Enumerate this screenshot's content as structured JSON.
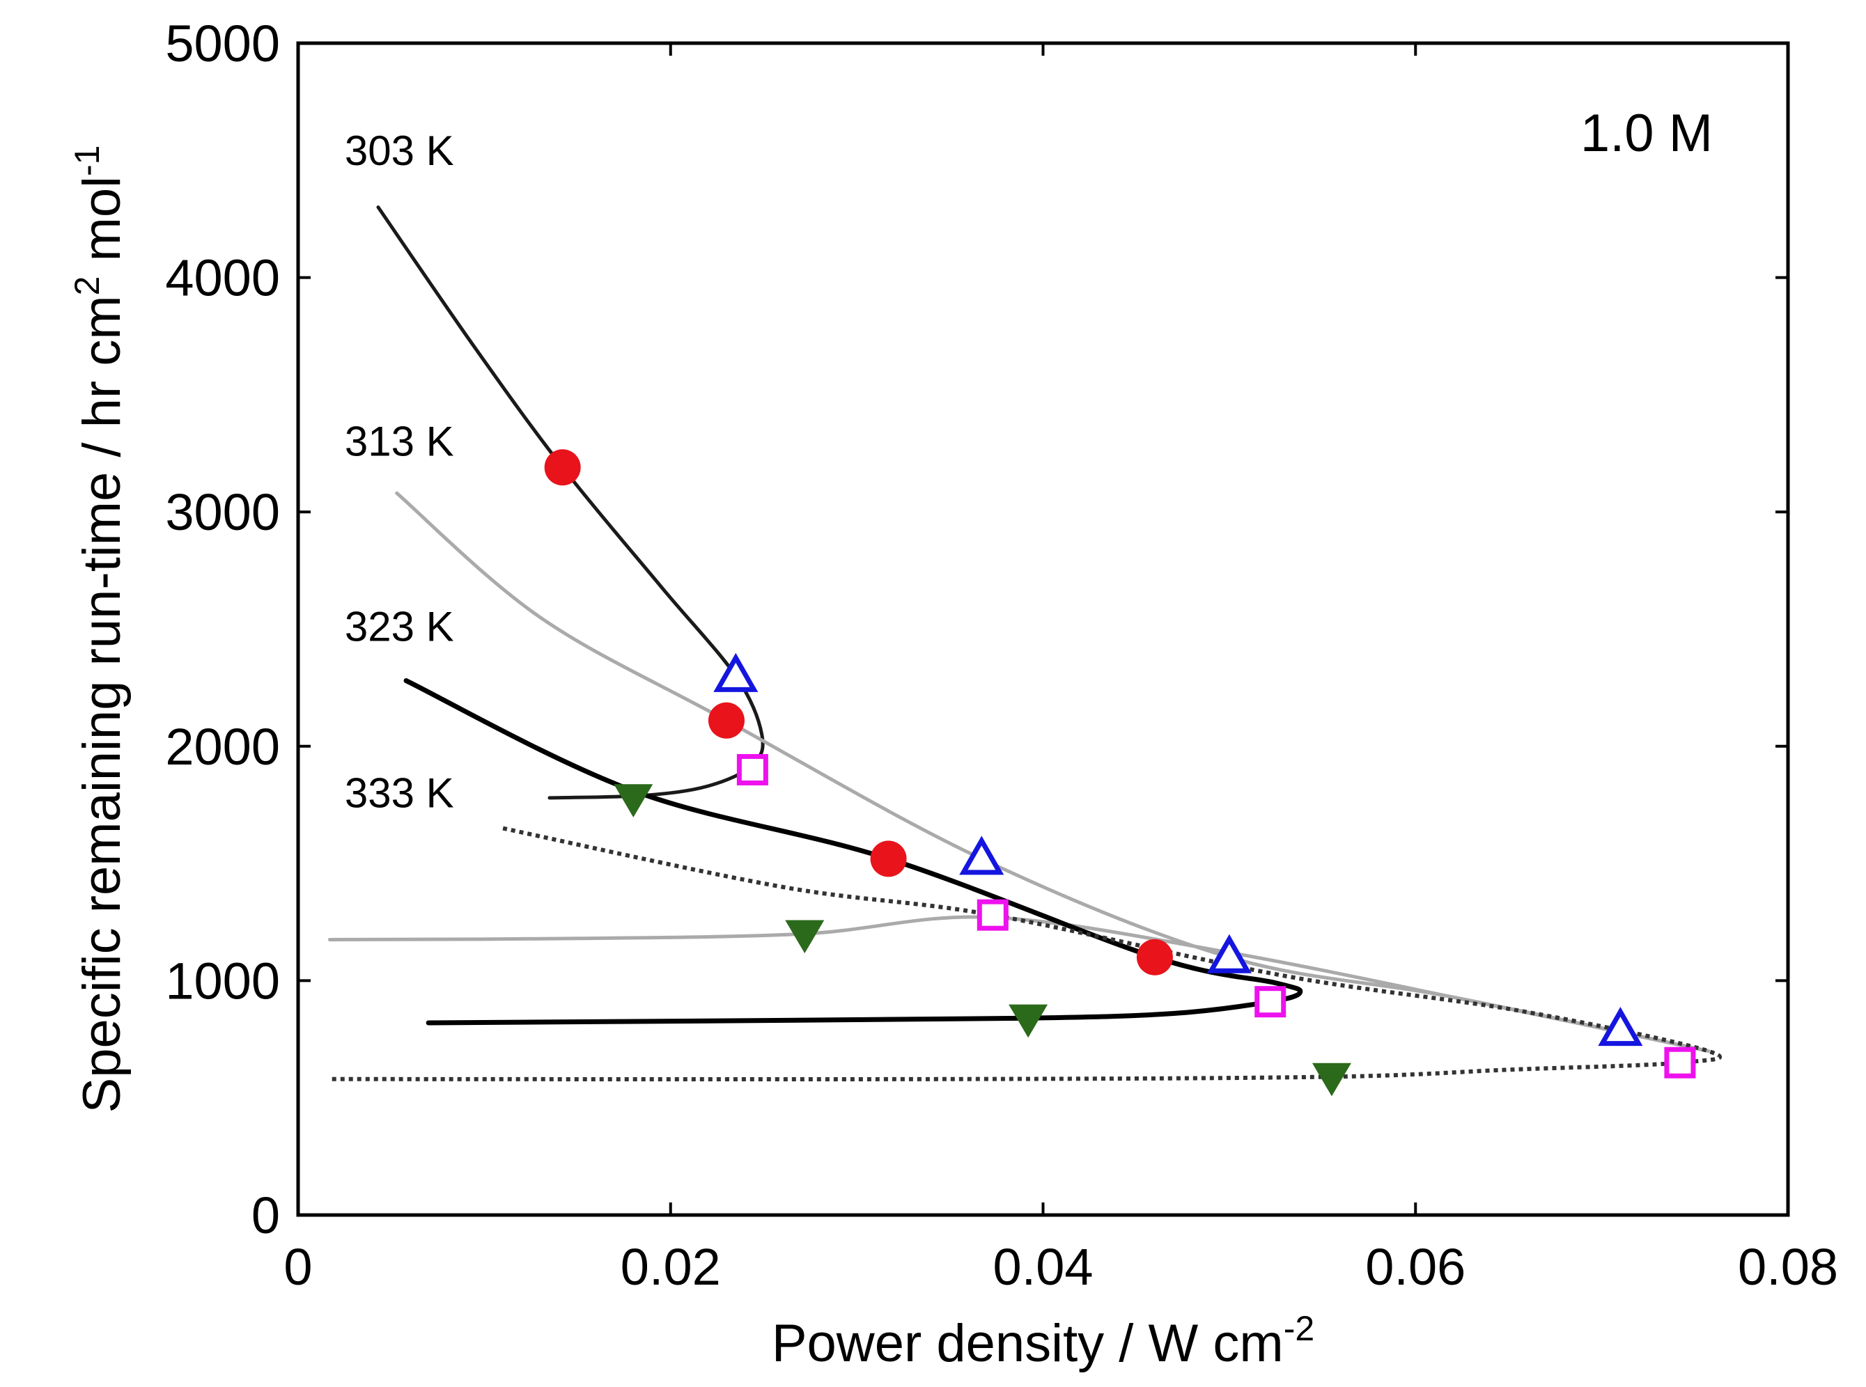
{
  "chart_data": {
    "type": "line",
    "title": "",
    "annotation": "1.0 M",
    "xlabel": {
      "main": "Power density / W cm",
      "sup": "-2"
    },
    "ylabel": {
      "p1": "Specific remaining run-time / hr cm",
      "sup1": "2",
      "p2": " mol",
      "sup2": "-1"
    },
    "xlim": [
      0,
      0.08
    ],
    "ylim": [
      0,
      5000
    ],
    "xticks": [
      0,
      0.02,
      0.04,
      0.06,
      0.08
    ],
    "xtick_labels": [
      "0",
      "0.02",
      "0.04",
      "0.06",
      "0.08"
    ],
    "yticks": [
      0,
      1000,
      2000,
      3000,
      4000,
      5000
    ],
    "ytick_labels": [
      "0",
      "1000",
      "2000",
      "3000",
      "4000",
      "5000"
    ],
    "curve_labels": [
      {
        "text": "303 K",
        "x": 0.0025,
        "y": 4480
      },
      {
        "text": "313 K",
        "x": 0.0025,
        "y": 3240
      },
      {
        "text": "323 K",
        "x": 0.0025,
        "y": 2450
      },
      {
        "text": "333 K",
        "x": 0.0025,
        "y": 1740
      }
    ],
    "series": [
      {
        "name": "303 K",
        "color": "#1a1a1a",
        "dash": "solid",
        "width": 5,
        "x": [
          0.0043,
          0.0095,
          0.0142,
          0.0195,
          0.0235,
          0.0249,
          0.0244,
          0.022,
          0.0185,
          0.0135
        ],
        "y": [
          4300,
          3700,
          3190,
          2680,
          2300,
          2050,
          1920,
          1830,
          1790,
          1780
        ]
      },
      {
        "name": "313 K",
        "color": "#aaaaaa",
        "dash": "solid",
        "width": 5,
        "x": [
          0.0053,
          0.013,
          0.023,
          0.0367,
          0.05,
          0.062,
          0.0757,
          0.065,
          0.05,
          0.0372,
          0.0272,
          0.015,
          0.0017
        ],
        "y": [
          3080,
          2550,
          2110,
          1520,
          1100,
          930,
          700,
          880,
          1120,
          1270,
          1200,
          1180,
          1175
        ]
      },
      {
        "name": "323 K",
        "color": "#000000",
        "dash": "solid",
        "width": 7,
        "x": [
          0.0058,
          0.018,
          0.0317,
          0.046,
          0.0525,
          0.0538,
          0.0522,
          0.047,
          0.0392,
          0.025,
          0.007
        ],
        "y": [
          2280,
          1810,
          1520,
          1100,
          990,
          950,
          910,
          860,
          840,
          830,
          820
        ]
      },
      {
        "name": "333 K",
        "color": "#333333",
        "dash": "dotted",
        "width": 6,
        "x": [
          0.011,
          0.026,
          0.0373,
          0.053,
          0.0657,
          0.0757,
          0.0742,
          0.065,
          0.0555,
          0.035,
          0.0017
        ],
        "y": [
          1650,
          1400,
          1280,
          1020,
          870,
          700,
          650,
          620,
          590,
          580,
          580
        ]
      }
    ],
    "markers": [
      {
        "name": "filled-circle",
        "color": "#e8131b",
        "points": [
          [
            0.0142,
            3190
          ],
          [
            0.023,
            2110
          ],
          [
            0.0317,
            1520
          ],
          [
            0.046,
            1100
          ]
        ]
      },
      {
        "name": "open-triangle",
        "color": "#1515e0",
        "points": [
          [
            0.0235,
            2300
          ],
          [
            0.0367,
            1520
          ],
          [
            0.05,
            1100
          ],
          [
            0.071,
            790
          ]
        ]
      },
      {
        "name": "open-square",
        "color": "#ee11ee",
        "points": [
          [
            0.0244,
            1900
          ],
          [
            0.0373,
            1280
          ],
          [
            0.0522,
            910
          ],
          [
            0.0742,
            650
          ]
        ]
      },
      {
        "name": "filled-down-triangle",
        "color": "#2a6a1a",
        "points": [
          [
            0.018,
            1780
          ],
          [
            0.0272,
            1200
          ],
          [
            0.0392,
            840
          ],
          [
            0.0555,
            590
          ]
        ]
      }
    ]
  }
}
